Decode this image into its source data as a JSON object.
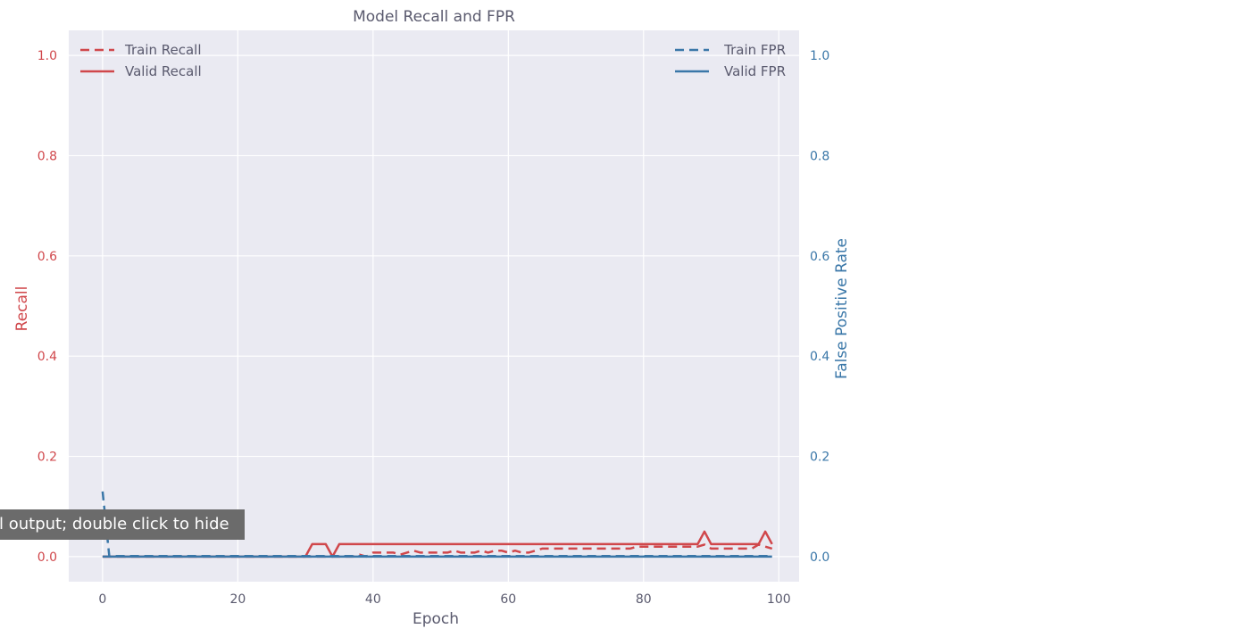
{
  "chart_data": {
    "type": "line",
    "title": "Model Recall and FPR",
    "xlabel": "Epoch",
    "ylabel_left": "Recall",
    "ylabel_right": "False Positive Rate",
    "xlim": [
      -5,
      103
    ],
    "ylim": [
      -0.05,
      1.05
    ],
    "x_ticks": [
      0,
      20,
      40,
      60,
      80,
      100
    ],
    "y_ticks": [
      0.0,
      0.2,
      0.4,
      0.6,
      0.8,
      1.0
    ],
    "y_tick_labels": [
      "0.0",
      "0.2",
      "0.4",
      "0.6",
      "0.8",
      "1.0"
    ],
    "grid": true,
    "colors": {
      "recall": "#d0474b",
      "fpr": "#3a77a8",
      "plot_bg": "#eaeaf2",
      "grid": "#ffffff",
      "text": "#5a5a6e"
    },
    "legend_left": {
      "position": "top-left",
      "entries": [
        "Train Recall",
        "Valid Recall"
      ]
    },
    "legend_right": {
      "position": "top-right",
      "entries": [
        "Train FPR",
        "Valid FPR"
      ]
    },
    "series": [
      {
        "name": "Train Recall",
        "axis": "left",
        "style": "dashed",
        "color": "#d0474b",
        "x": [
          0,
          37,
          38,
          39,
          40,
          43,
          44,
          45,
          46,
          47,
          48,
          51,
          52,
          53,
          54,
          55,
          56,
          57,
          58,
          59,
          60,
          61,
          62,
          63,
          64,
          65,
          78,
          79,
          80,
          88,
          89,
          90,
          96,
          97,
          98,
          99
        ],
        "y": [
          0.0,
          0.0,
          0.004,
          0.0,
          0.008,
          0.008,
          0.004,
          0.008,
          0.012,
          0.008,
          0.008,
          0.008,
          0.012,
          0.008,
          0.008,
          0.008,
          0.012,
          0.008,
          0.012,
          0.012,
          0.008,
          0.012,
          0.008,
          0.008,
          0.012,
          0.016,
          0.016,
          0.02,
          0.02,
          0.02,
          0.024,
          0.016,
          0.016,
          0.024,
          0.02,
          0.016
        ]
      },
      {
        "name": "Valid Recall",
        "axis": "left",
        "style": "solid",
        "color": "#d0474b",
        "x": [
          0,
          30,
          31,
          33,
          34,
          35,
          88,
          89,
          90,
          97,
          98,
          99
        ],
        "y": [
          0.0,
          0.0,
          0.025,
          0.025,
          0.0,
          0.025,
          0.025,
          0.05,
          0.025,
          0.025,
          0.05,
          0.025
        ]
      },
      {
        "name": "Train FPR",
        "axis": "right",
        "style": "dashed",
        "color": "#3a77a8",
        "x": [
          0,
          1,
          99
        ],
        "y": [
          0.13,
          0.001,
          0.001
        ]
      },
      {
        "name": "Valid FPR",
        "axis": "right",
        "style": "solid",
        "color": "#3a77a8",
        "x": [
          0,
          99
        ],
        "y": [
          0.0,
          0.0
        ]
      }
    ]
  },
  "tooltip": {
    "text": "ll output; double click to hide"
  }
}
